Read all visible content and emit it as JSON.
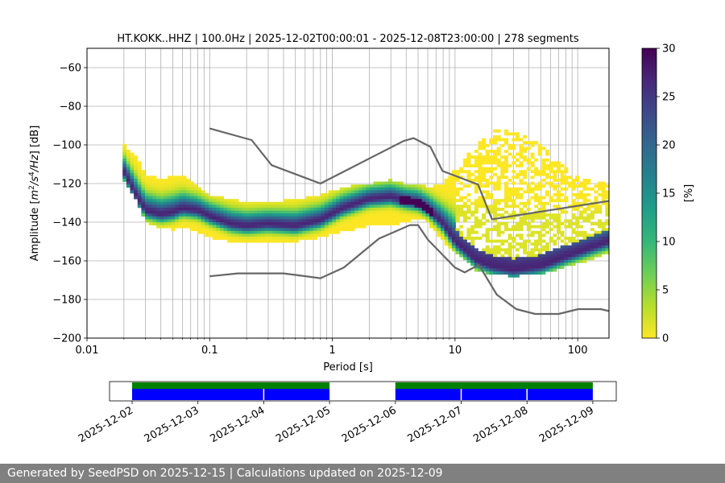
{
  "chart_data": {
    "type": "heatmap",
    "title": "HT.KOKK..HHZ | 100.0Hz | 2025-12-02T00:00:01 - 2025-12-08T23:00:00 | 278 segments",
    "xlabel": "Period [s]",
    "ylabel_main": "Amplitude [",
    "ylabel_math": "m",
    "ylabel_sup1": "2",
    "ylabel_math2": "/s",
    "ylabel_sup2": "4",
    "ylabel_math3": "/Hz",
    "ylabel_end": "] [dB]",
    "x_scale": "log",
    "xlim": [
      0.01,
      180
    ],
    "ylim": [
      -200,
      -50
    ],
    "x_tick_labels": [
      {
        "value": 0.01,
        "label": "0.01"
      },
      {
        "value": 0.1,
        "label": "0.1"
      },
      {
        "value": 1,
        "label": "1"
      },
      {
        "value": 10,
        "label": "10"
      },
      {
        "value": 100,
        "label": "100"
      }
    ],
    "y_tick_labels": [
      {
        "value": -60,
        "label": "−60"
      },
      {
        "value": -80,
        "label": "−80"
      },
      {
        "value": -100,
        "label": "−100"
      },
      {
        "value": -120,
        "label": "−120"
      },
      {
        "value": -140,
        "label": "−140"
      },
      {
        "value": -160,
        "label": "−160"
      },
      {
        "value": -180,
        "label": "−180"
      },
      {
        "value": -200,
        "label": "−200"
      }
    ],
    "grid": "x-major-and-minor, y-major",
    "colorbar": {
      "label": "[%]",
      "range": [
        0,
        30
      ],
      "ticks": [
        {
          "value": 0,
          "label": "0"
        },
        {
          "value": 5,
          "label": "5"
        },
        {
          "value": 10,
          "label": "10"
        },
        {
          "value": 15,
          "label": "15"
        },
        {
          "value": 20,
          "label": "20"
        },
        {
          "value": 25,
          "label": "25"
        },
        {
          "value": 30,
          "label": "30"
        }
      ],
      "colormap": [
        "#fde725",
        "#b5de2b",
        "#6ece58",
        "#35b779",
        "#1f9e89",
        "#26828e",
        "#31688e",
        "#3e4989",
        "#482878",
        "#440154"
      ]
    },
    "noise_model_high": [
      [
        0.1,
        -91.5
      ],
      [
        0.22,
        -97.5
      ],
      [
        0.32,
        -110.5
      ],
      [
        0.8,
        -120
      ],
      [
        3.8,
        -98
      ],
      [
        4.6,
        -96.5
      ],
      [
        6.3,
        -101
      ],
      [
        7.9,
        -113.5
      ],
      [
        15.4,
        -120.5
      ],
      [
        20,
        -138.5
      ],
      [
        180,
        -129
      ]
    ],
    "noise_model_low": [
      [
        0.1,
        -168
      ],
      [
        0.17,
        -166.5
      ],
      [
        0.4,
        -166.5
      ],
      [
        0.8,
        -169
      ],
      [
        1.24,
        -163.5
      ],
      [
        2.4,
        -148.5
      ],
      [
        4.3,
        -141.5
      ],
      [
        5.0,
        -141.5
      ],
      [
        6.0,
        -149
      ],
      [
        10,
        -163.5
      ],
      [
        12,
        -166
      ],
      [
        15.6,
        -162
      ],
      [
        21.9,
        -177.5
      ],
      [
        31.6,
        -185
      ],
      [
        45,
        -187.5
      ],
      [
        70,
        -187.5
      ],
      [
        101,
        -185
      ],
      [
        154,
        -185
      ],
      [
        180,
        -186
      ]
    ],
    "psd_modes": [
      [
        0.02,
        -114,
        -100,
        -118
      ],
      [
        0.025,
        -126,
        -105,
        -128
      ],
      [
        0.03,
        -134,
        -115,
        -140
      ],
      [
        0.04,
        -136,
        -118,
        -143
      ],
      [
        0.05,
        -135,
        -116,
        -144
      ],
      [
        0.06,
        -133,
        -116,
        -143
      ],
      [
        0.08,
        -134,
        -122,
        -145
      ],
      [
        0.1,
        -137,
        -126,
        -148
      ],
      [
        0.15,
        -141,
        -128,
        -150
      ],
      [
        0.2,
        -142,
        -130,
        -151
      ],
      [
        0.3,
        -141,
        -130,
        -150
      ],
      [
        0.5,
        -142,
        -128,
        -150
      ],
      [
        0.8,
        -139,
        -126,
        -148
      ],
      [
        1.2,
        -133,
        -122,
        -145
      ],
      [
        2.0,
        -128,
        -120,
        -142
      ],
      [
        3.0,
        -127,
        -118,
        -142
      ],
      [
        4.0,
        -129,
        -120,
        -140
      ],
      [
        5.0,
        -130,
        -120,
        -138
      ],
      [
        6.0,
        -133,
        -122,
        -140
      ],
      [
        8.0,
        -141,
        -120,
        -150
      ],
      [
        10.0,
        -150,
        -112,
        -155
      ],
      [
        15.0,
        -160,
        -100,
        -165
      ],
      [
        20.0,
        -163,
        -92,
        -167
      ],
      [
        30.0,
        -165,
        -92,
        -168
      ],
      [
        50.0,
        -163,
        -100,
        -167
      ],
      [
        80.0,
        -158,
        -112,
        -163
      ],
      [
        120.0,
        -154,
        -118,
        -160
      ],
      [
        180.0,
        -150,
        -120,
        -156
      ]
    ],
    "availability": {
      "date_labels": [
        "2025-12-02",
        "2025-12-03",
        "2025-12-04",
        "2025-12-05",
        "2025-12-06",
        "2025-12-07",
        "2025-12-08",
        "2025-12-09"
      ],
      "data_span_days": [
        [
          0,
          3
        ],
        [
          4,
          7
        ]
      ],
      "segment_breaks_days": [
        2,
        5,
        6
      ],
      "data_color": "#008000",
      "psd_color": "#0000ff"
    }
  },
  "footer": {
    "text": "Generated by SeedPSD on 2025-12-15 | Calculations updated on 2025-12-09"
  }
}
